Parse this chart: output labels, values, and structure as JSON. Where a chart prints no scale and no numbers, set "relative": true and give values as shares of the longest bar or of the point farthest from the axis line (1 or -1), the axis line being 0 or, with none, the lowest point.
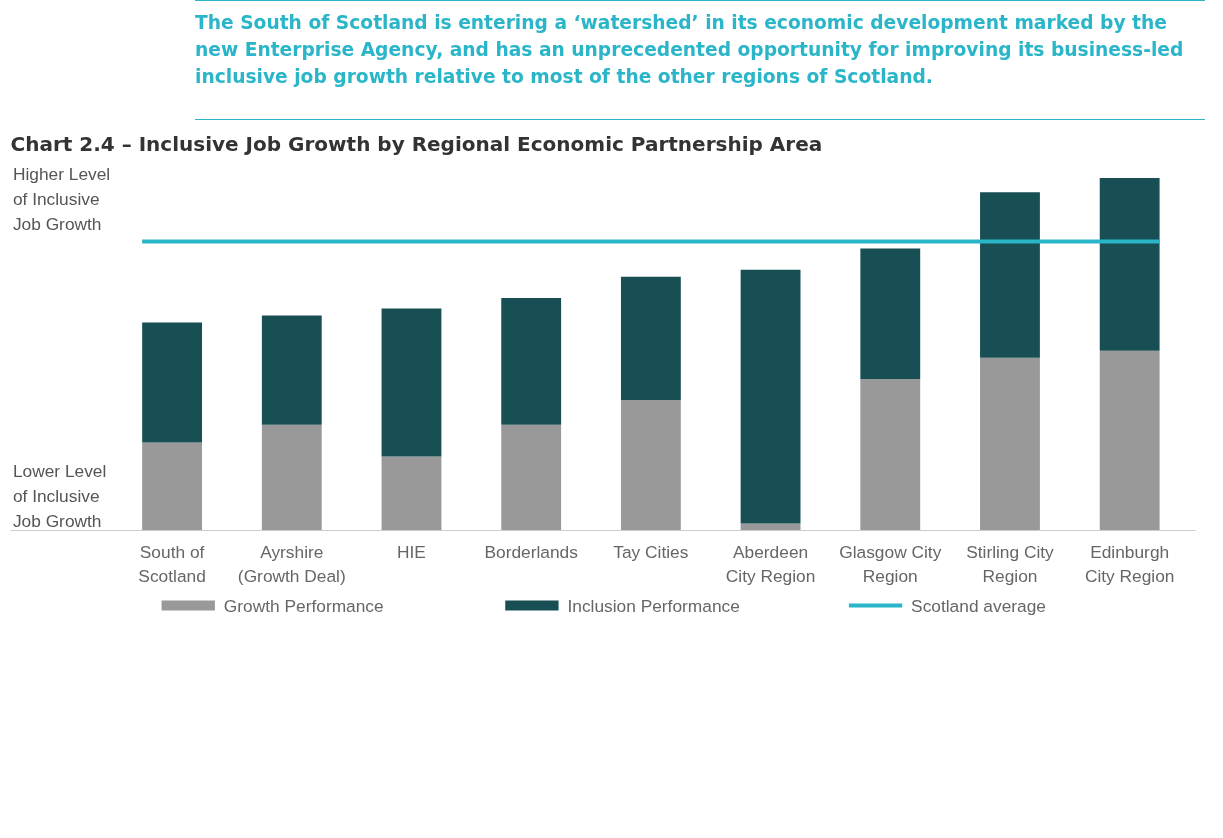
{
  "chart_data": {
    "type": "bar",
    "stacked": true,
    "relative": true,
    "title": "Chart 2.4 – Inclusive Job Growth by Regional Economic Partnership Area",
    "categories": [
      "South of\nScotland",
      "Ayrshire\n(Growth Deal)",
      "HIE",
      "Borderlands",
      "Tay Cities",
      "Aberdeen\nCity Region",
      "Glasgow City\nRegion",
      "Stirling City\nRegion",
      "Edinburgh\nCity Region"
    ],
    "series": [
      {
        "name": "Growth Performance",
        "color": "#999999",
        "values": [
          0.25,
          0.3,
          0.21,
          0.3,
          0.37,
          0.02,
          0.43,
          0.49,
          0.51
        ]
      },
      {
        "name": "Inclusion Performance",
        "color": "#174f55",
        "values": [
          0.34,
          0.31,
          0.42,
          0.36,
          0.35,
          0.72,
          0.37,
          0.47,
          0.49
        ]
      }
    ],
    "ref_lines": [
      {
        "axis": "y",
        "value": 0.82,
        "label": "Scotland average",
        "color": "#2ab6c8"
      }
    ],
    "annotations": [
      "The South of Scotland is entering a ‘watershed’ in its economic development marked by the new Enterprise Agency, and has an unprecedented opportunity for improving its business-led inclusive job growth relative to most of the other regions of Scotland.",
      "Higher Level\nof Inclusive\nJob Growth",
      "Lower Level\nof Inclusive\nJob Growth"
    ],
    "legend": "bottom",
    "grid": false
  }
}
